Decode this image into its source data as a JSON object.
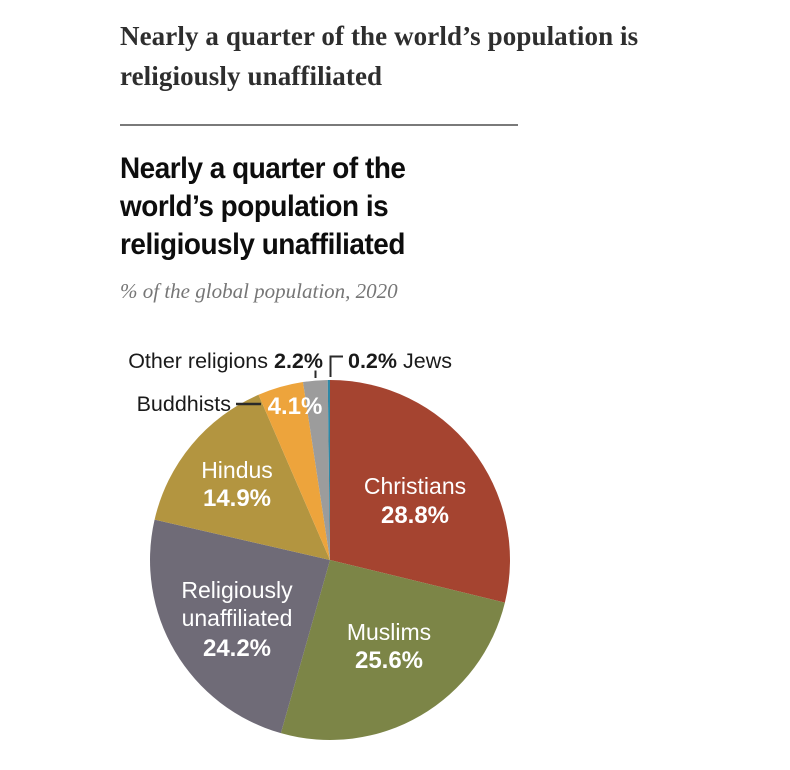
{
  "page": {
    "heading_lines": [
      "Nearly a quarter of the world’s population is",
      "religiously unaffiliated"
    ]
  },
  "chart": {
    "title_lines": [
      "Nearly a quarter of the",
      "world’s population is",
      "religiously unaffiliated"
    ],
    "subtitle": "% of the global population, 2020"
  },
  "chart_data": {
    "type": "pie",
    "title": "Nearly a quarter of the world’s population is religiously unaffiliated",
    "subtitle": "% of the global population, 2020",
    "unit": "% of global population",
    "year": 2020,
    "direction": "clockwise",
    "start_angle_deg": 0,
    "slices": [
      {
        "label": "Christians",
        "value": 28.8,
        "color": "#a54430",
        "label_placement": "inside"
      },
      {
        "label": "Muslims",
        "value": 25.6,
        "color": "#7c8547",
        "label_placement": "inside"
      },
      {
        "label": "Religiously unaffiliated",
        "label_lines": [
          "Religiously",
          "unaffiliated"
        ],
        "value": 24.2,
        "color": "#6f6b77",
        "label_placement": "inside"
      },
      {
        "label": "Hindus",
        "value": 14.9,
        "color": "#b39540",
        "label_placement": "inside"
      },
      {
        "label": "Buddhists",
        "value": 4.1,
        "color": "#eda43c",
        "label_placement": "callout-left"
      },
      {
        "label": "Other religions",
        "value": 2.2,
        "color": "#9c9c9c",
        "label_placement": "callout-top"
      },
      {
        "label": "Jews",
        "value": 0.2,
        "color": "#2e88a6",
        "label_placement": "callout-top-right"
      }
    ],
    "text_colors": {
      "inside_labels": "#ffffff",
      "outside_labels": "#1a1a1a"
    },
    "legend": "none"
  }
}
